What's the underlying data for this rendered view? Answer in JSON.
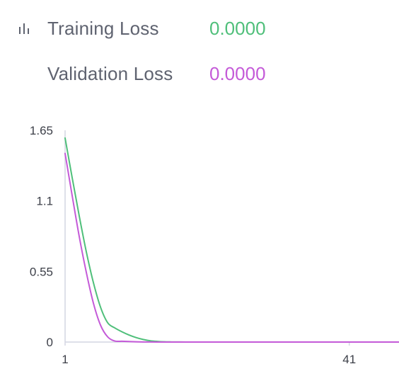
{
  "legend": {
    "items": [
      {
        "label": "Training Loss",
        "value": "0.0000",
        "color": "#4fbf7a"
      },
      {
        "label": "Validation Loss",
        "value": "0.0000",
        "color": "#c45ad8"
      }
    ],
    "icon": "bar-chart-icon"
  },
  "chart_data": {
    "type": "line",
    "xlim": [
      1,
      48
    ],
    "ylim": [
      0,
      1.65
    ],
    "x_ticks": [
      "1",
      "41"
    ],
    "x_tick_values": [
      1,
      41
    ],
    "y_ticks": [
      "1.65",
      "1.1",
      "0.55",
      "0"
    ],
    "y_tick_values": [
      1.65,
      1.1,
      0.55,
      0
    ],
    "grid": false,
    "series": [
      {
        "color": "#4fbf7a",
        "x": [
          1,
          2,
          3,
          4,
          5,
          6,
          7,
          8,
          9,
          10,
          11,
          12,
          13,
          14,
          15,
          16,
          17,
          18,
          19,
          20,
          21,
          22,
          23,
          24,
          25,
          26,
          27,
          28,
          29,
          30,
          31,
          32,
          33,
          34,
          35,
          36,
          37,
          38,
          39,
          40,
          41,
          42,
          43,
          44,
          45,
          46,
          47,
          48
        ],
        "y": [
          1.59,
          1.28,
          0.98,
          0.7,
          0.46,
          0.27,
          0.15,
          0.11,
          0.08,
          0.055,
          0.035,
          0.02,
          0.01,
          0.005,
          0.002,
          0.001,
          0.0005,
          0.0002,
          0.0001,
          0,
          0,
          0,
          0,
          0,
          0,
          0,
          0,
          0,
          0,
          0,
          0,
          0,
          0,
          0,
          0,
          0,
          0,
          0,
          0,
          0,
          0,
          0,
          0,
          0,
          0,
          0,
          0,
          0
        ]
      },
      {
        "color": "#c45ad8",
        "x": [
          1,
          2,
          3,
          4,
          5,
          6,
          7,
          8,
          9,
          10,
          11,
          12,
          13,
          14,
          15,
          16,
          17,
          18,
          19,
          20,
          21,
          22,
          23,
          24,
          25,
          26,
          27,
          28,
          29,
          30,
          31,
          32,
          33,
          34,
          35,
          36,
          37,
          38,
          39,
          40,
          41,
          42,
          43,
          44,
          45,
          46,
          47,
          48
        ],
        "y": [
          1.47,
          1.14,
          0.82,
          0.54,
          0.3,
          0.13,
          0.04,
          0.008,
          0.006,
          0.004,
          0.002,
          0.001,
          0.0005,
          0.0002,
          0,
          0,
          0,
          0,
          0,
          0,
          0,
          0,
          0,
          0,
          0,
          0,
          0,
          0,
          0,
          0,
          0,
          0,
          0,
          0,
          0,
          0,
          0,
          0,
          0,
          0,
          0,
          0,
          0,
          0,
          0,
          0,
          0,
          0
        ]
      }
    ]
  }
}
